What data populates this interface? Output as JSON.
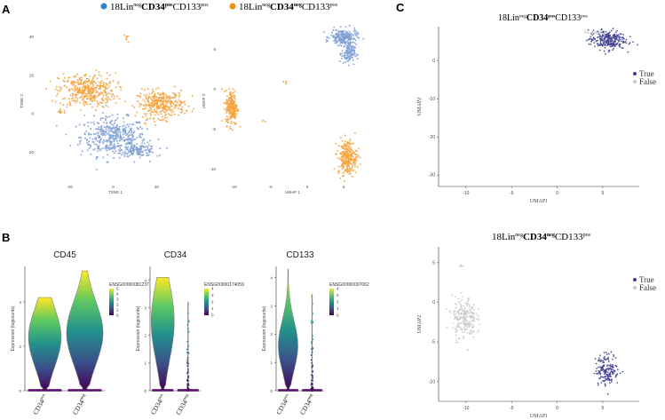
{
  "panels": {
    "A": "A",
    "B": "B",
    "C": "C"
  },
  "legend_a": [
    {
      "base": "18Lin",
      "sup1": "neg",
      "bold": "CD34",
      "sup2": "pos",
      "tail": "CD133",
      "sup3": "pos",
      "color": "#2e86d1"
    },
    {
      "base": "18Lin",
      "sup1": "neg",
      "bold": "CD34",
      "sup2": "neg",
      "tail": "CD133",
      "sup3": "pos",
      "color": "#f28e1c"
    }
  ],
  "colors": {
    "blue_cluster": "#7f9fd6",
    "orange_cluster": "#f5a340",
    "true_points": "#3b3b8f",
    "false_points": "#c8c8c8",
    "violin_edge": "#808080",
    "viridis": [
      "#440154",
      "#3b528b",
      "#21918c",
      "#5ec962",
      "#fde725"
    ]
  },
  "chart_data": [
    {
      "id": "tsne",
      "type": "scatter",
      "title": "",
      "xlabel": "TSNE 1",
      "ylabel": "TSNE 2",
      "xlim": [
        -35,
        37
      ],
      "ylim": [
        -35,
        48
      ],
      "xticks": [
        -20,
        0,
        20
      ],
      "yticks": [
        -20,
        0,
        20,
        40
      ],
      "series": [
        {
          "name": "18LinnegCD34posCD133pos",
          "color": "#7f9fd6",
          "clusters": [
            {
              "cx": 0,
              "cy": -12,
              "rx": 15,
              "ry": 10,
              "n": 420
            },
            {
              "cx": 12,
              "cy": -19,
              "rx": 8,
              "ry": 3,
              "n": 120
            }
          ]
        },
        {
          "name": "18LinnegCD34negCD133pos",
          "color": "#f5a340",
          "clusters": [
            {
              "cx": -12,
              "cy": 12,
              "rx": 13,
              "ry": 9,
              "n": 380
            },
            {
              "cx": 22,
              "cy": 5,
              "rx": 11,
              "ry": 7,
              "n": 330
            },
            {
              "cx": -24,
              "cy": 1,
              "rx": 2,
              "ry": 1,
              "n": 10
            },
            {
              "cx": 6,
              "cy": 39,
              "rx": 1.5,
              "ry": 1.5,
              "n": 8
            }
          ]
        }
      ]
    },
    {
      "id": "umap_all",
      "type": "scatter",
      "xlabel": "UMAP 1",
      "ylabel": "UMAP 2",
      "xlim": [
        -12,
        8
      ],
      "ylim": [
        -11.5,
        8.5
      ],
      "xticks": [
        -10,
        -5,
        0,
        5
      ],
      "yticks": [
        -10,
        -5,
        0,
        5
      ],
      "series": [
        {
          "name": "18LinnegCD34posCD133pos",
          "color": "#7f9fd6",
          "clusters": [
            {
              "cx": 5,
              "cy": 6.5,
              "rx": 1.8,
              "ry": 1,
              "n": 200
            },
            {
              "cx": 5.6,
              "cy": 4.5,
              "rx": 0.9,
              "ry": 1.3,
              "n": 120
            }
          ]
        },
        {
          "name": "18LinnegCD34negCD133pos",
          "color": "#f5a340",
          "clusters": [
            {
              "cx": -10.3,
              "cy": -2.3,
              "rx": 0.8,
              "ry": 2.2,
              "n": 220
            },
            {
              "cx": 5.5,
              "cy": -8.5,
              "rx": 1.3,
              "ry": 2.2,
              "n": 260
            },
            {
              "cx": -3,
              "cy": 0.8,
              "rx": 0.3,
              "ry": 0.3,
              "n": 4
            },
            {
              "cx": -6,
              "cy": -4,
              "rx": 0.3,
              "ry": 0.3,
              "n": 3
            }
          ]
        }
      ]
    },
    {
      "id": "umap_pos",
      "type": "scatter",
      "title": {
        "base": "18Lin",
        "sup1": "neg",
        "bold": "CD34",
        "sup2": "pos",
        "tail": "CD133",
        "sup3": "pos"
      },
      "xlabel": "UMAP1",
      "ylabel": "UMAP2",
      "xlim": [
        -13,
        9
      ],
      "ylim": [
        -33,
        9
      ],
      "xticks": [
        -10,
        -5,
        0,
        5
      ],
      "yticks": [
        -30,
        -20,
        -10,
        0
      ],
      "ytick_labels": [
        "-30",
        "-20",
        "-10",
        "0"
      ],
      "legend": [
        "True",
        "False"
      ],
      "series": [
        {
          "name": "True",
          "color": "#3b3b8f",
          "clusters": [
            {
              "cx": 5.5,
              "cy": 5.5,
              "rx": 2,
              "ry": 2.5,
              "n": 260
            }
          ]
        },
        {
          "name": "False",
          "color": "#c8c8c8",
          "clusters": [
            {
              "cx": 4,
              "cy": 7.5,
              "rx": 1,
              "ry": 0.5,
              "n": 25
            }
          ]
        }
      ]
    },
    {
      "id": "umap_neg",
      "type": "scatter",
      "title": {
        "base": "18Lin",
        "sup1": "neg",
        "bold": "CD34",
        "sup2": "neg",
        "tail": "CD133",
        "sup3": "pos"
      },
      "xlabel": "UMAP1",
      "ylabel": "UMAP2",
      "xlim": [
        -13,
        9
      ],
      "ylim": [
        -12.5,
        7
      ],
      "xticks": [
        -10,
        -5,
        0,
        5
      ],
      "yticks": [
        -10,
        -5,
        0,
        5
      ],
      "legend": [
        "True",
        "False"
      ],
      "series": [
        {
          "name": "True",
          "color": "#3b3b8f",
          "clusters": [
            {
              "cx": 5.5,
              "cy": -8.5,
              "rx": 1.3,
              "ry": 2,
              "n": 170
            }
          ]
        },
        {
          "name": "False",
          "color": "#c8c8c8",
          "clusters": [
            {
              "cx": -10.2,
              "cy": -2,
              "rx": 1.3,
              "ry": 2.6,
              "n": 240
            },
            {
              "cx": -10.5,
              "cy": 4.6,
              "rx": 0.3,
              "ry": 0.2,
              "n": 6
            }
          ]
        }
      ]
    },
    {
      "id": "violin_cd45",
      "type": "violin",
      "title": "CD45",
      "ylabel": "Expression (logcounts)",
      "ylim": [
        0,
        5.6
      ],
      "yticks": [
        0,
        2,
        4
      ],
      "categories": [
        "CD34pos",
        "CD34neg"
      ],
      "groups": [
        {
          "base": "CD34",
          "sup": "pos"
        },
        {
          "base": "CD34",
          "sup": "neg"
        }
      ],
      "colorbar": {
        "title": "ENSG00000081237",
        "ticks": [
          0,
          1,
          2,
          3,
          4,
          5
        ],
        "max": 5
      },
      "violins": [
        {
          "max": 4.2,
          "peak": 2.4,
          "width": 0.85
        },
        {
          "max": 5.4,
          "peak": 2.6,
          "width": 0.95
        }
      ]
    },
    {
      "id": "violin_cd34",
      "type": "violin",
      "title": "CD34",
      "ylabel": "Expression (logcounts)",
      "ylim": [
        0,
        4.5
      ],
      "yticks": [
        0,
        1,
        2,
        3,
        4
      ],
      "categories": [
        "CD34pos",
        "CD34neg"
      ],
      "groups": [
        {
          "base": "CD34",
          "sup": "pos"
        },
        {
          "base": "CD34",
          "sup": "neg"
        }
      ],
      "colorbar": {
        "title": "ENSG00000174059",
        "ticks": [
          0,
          1,
          2,
          3,
          4
        ],
        "max": 4
      },
      "violins": [
        {
          "max": 4.1,
          "peak": 2.5,
          "width": 0.95
        },
        {
          "max": 3.2,
          "peak": 0.0,
          "width": 0.2
        }
      ]
    },
    {
      "id": "violin_cd133",
      "type": "violin",
      "title": "CD133",
      "ylabel": "Expression (logcounts)",
      "ylim": [
        0,
        4.4
      ],
      "yticks": [
        0,
        1,
        2,
        3,
        4
      ],
      "categories": [
        "CD34pos",
        "CD34neg"
      ],
      "groups": [
        {
          "base": "CD34",
          "sup": "pos"
        },
        {
          "base": "CD34",
          "sup": "neg"
        }
      ],
      "colorbar": {
        "title": "ENSG00000007062",
        "ticks": [
          0,
          1,
          2,
          3,
          4
        ],
        "max": 4
      },
      "violins": [
        {
          "max": 4.3,
          "peak": 1.6,
          "width": 0.85
        },
        {
          "max": 3.4,
          "peak": 0.0,
          "width": 0.25
        }
      ]
    }
  ]
}
